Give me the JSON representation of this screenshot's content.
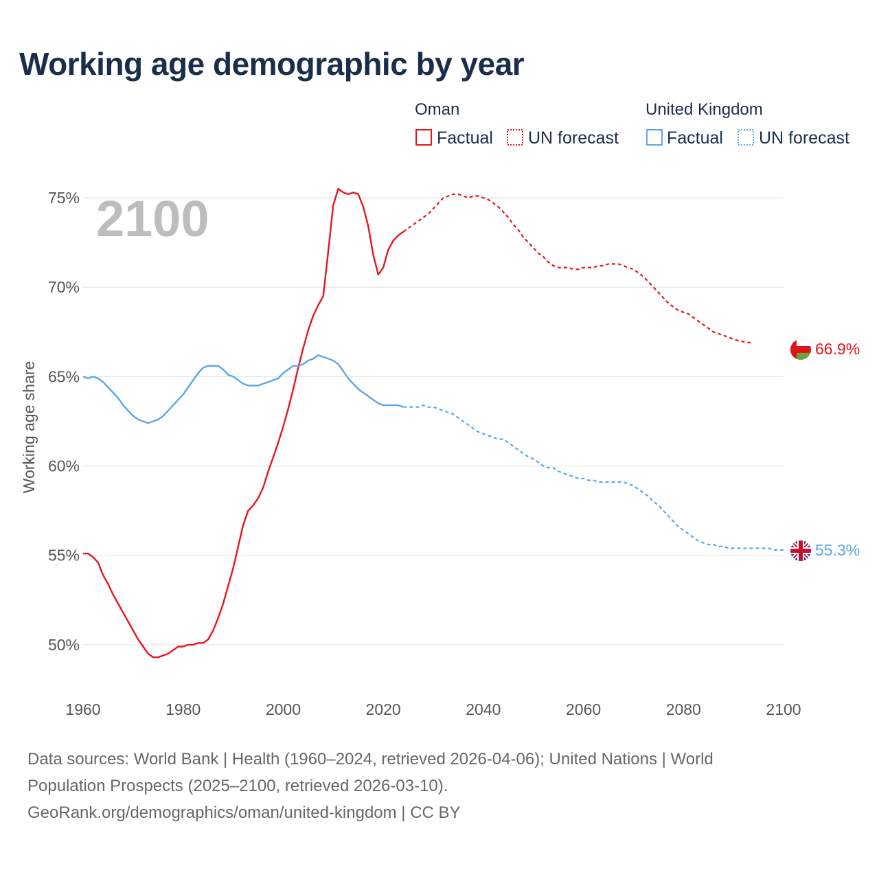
{
  "title": "Working age demographic by year",
  "colors": {
    "oman": "#e8141b",
    "uk": "#5aa6e6",
    "grid": "#e2e2e2",
    "text": "#1a2e4c"
  },
  "legend": {
    "groups": [
      {
        "name": "Oman",
        "color": "#e8141b",
        "factual_label": "Factual",
        "forecast_label": "UN forecast"
      },
      {
        "name": "United Kingdom",
        "color": "#5aa6e6",
        "factual_label": "Factual",
        "forecast_label": "UN forecast"
      }
    ]
  },
  "current_year": "2100",
  "footer": {
    "line1": "Data sources: World Bank | Health (1960–2024, retrieved 2026-04-06); United Nations | World",
    "line2": "Population Prospects (2025–2100, retrieved 2026-03-10).",
    "line3": "GeoRank.org/demographics/oman/united-kingdom | CC BY"
  },
  "chart_data": {
    "type": "line",
    "title": "Working age demographic by year",
    "xlabel": "",
    "ylabel": "Working age share",
    "xlim": [
      1960,
      2100
    ],
    "ylim": [
      47.5,
      76.5
    ],
    "x_ticks": [
      1960,
      1980,
      2000,
      2020,
      2040,
      2060,
      2080,
      2100
    ],
    "y_ticks": [
      50,
      55,
      60,
      65,
      70,
      75
    ],
    "y_tick_labels": [
      "50%",
      "55%",
      "60%",
      "65%",
      "70%",
      "75%"
    ],
    "grid": true,
    "legend_position": "top-right",
    "factual_end_year": 2024,
    "series": [
      {
        "name": "Oman",
        "color": "#e8141b",
        "end_label": "66.9%",
        "points": [
          [
            1960,
            55.1
          ],
          [
            1961,
            55.1
          ],
          [
            1962,
            54.9
          ],
          [
            1963,
            54.6
          ],
          [
            1964,
            53.9
          ],
          [
            1965,
            53.4
          ],
          [
            1966,
            52.8
          ],
          [
            1967,
            52.3
          ],
          [
            1968,
            51.8
          ],
          [
            1969,
            51.3
          ],
          [
            1970,
            50.8
          ],
          [
            1971,
            50.3
          ],
          [
            1972,
            49.9
          ],
          [
            1973,
            49.5
          ],
          [
            1974,
            49.3
          ],
          [
            1975,
            49.3
          ],
          [
            1976,
            49.4
          ],
          [
            1977,
            49.5
          ],
          [
            1978,
            49.7
          ],
          [
            1979,
            49.9
          ],
          [
            1980,
            49.9
          ],
          [
            1981,
            50.0
          ],
          [
            1982,
            50.0
          ],
          [
            1983,
            50.1
          ],
          [
            1984,
            50.1
          ],
          [
            1985,
            50.3
          ],
          [
            1986,
            50.8
          ],
          [
            1987,
            51.5
          ],
          [
            1988,
            52.3
          ],
          [
            1989,
            53.3
          ],
          [
            1990,
            54.3
          ],
          [
            1991,
            55.5
          ],
          [
            1992,
            56.7
          ],
          [
            1993,
            57.5
          ],
          [
            1994,
            57.8
          ],
          [
            1995,
            58.2
          ],
          [
            1996,
            58.8
          ],
          [
            1997,
            59.7
          ],
          [
            1998,
            60.5
          ],
          [
            1999,
            61.3
          ],
          [
            2000,
            62.2
          ],
          [
            2001,
            63.2
          ],
          [
            2002,
            64.3
          ],
          [
            2003,
            65.5
          ],
          [
            2004,
            66.6
          ],
          [
            2005,
            67.6
          ],
          [
            2006,
            68.4
          ],
          [
            2007,
            69.0
          ],
          [
            2008,
            69.5
          ],
          [
            2009,
            72.0
          ],
          [
            2010,
            74.6
          ],
          [
            2011,
            75.5
          ],
          [
            2012,
            75.3
          ],
          [
            2013,
            75.2
          ],
          [
            2014,
            75.3
          ],
          [
            2015,
            75.2
          ],
          [
            2016,
            74.5
          ],
          [
            2017,
            73.4
          ],
          [
            2018,
            71.8
          ],
          [
            2019,
            70.7
          ],
          [
            2020,
            71.1
          ],
          [
            2021,
            72.1
          ],
          [
            2022,
            72.6
          ],
          [
            2023,
            72.9
          ],
          [
            2024,
            73.1
          ],
          [
            2025,
            73.3
          ],
          [
            2026,
            73.5
          ],
          [
            2027,
            73.7
          ],
          [
            2028,
            73.9
          ],
          [
            2029,
            74.1
          ],
          [
            2030,
            74.4
          ],
          [
            2031,
            74.7
          ],
          [
            2032,
            75.0
          ],
          [
            2033,
            75.1
          ],
          [
            2034,
            75.2
          ],
          [
            2035,
            75.2
          ],
          [
            2036,
            75.1
          ],
          [
            2037,
            75.0
          ],
          [
            2038,
            75.1
          ],
          [
            2039,
            75.1
          ],
          [
            2040,
            75.0
          ],
          [
            2041,
            74.9
          ],
          [
            2042,
            74.7
          ],
          [
            2043,
            74.5
          ],
          [
            2044,
            74.2
          ],
          [
            2045,
            73.9
          ],
          [
            2046,
            73.5
          ],
          [
            2047,
            73.2
          ],
          [
            2048,
            72.8
          ],
          [
            2049,
            72.5
          ],
          [
            2050,
            72.2
          ],
          [
            2051,
            71.9
          ],
          [
            2052,
            71.7
          ],
          [
            2053,
            71.4
          ],
          [
            2054,
            71.2
          ],
          [
            2055,
            71.1
          ],
          [
            2056,
            71.1
          ],
          [
            2057,
            71.1
          ],
          [
            2058,
            71.0
          ],
          [
            2059,
            71.0
          ],
          [
            2060,
            71.1
          ],
          [
            2061,
            71.1
          ],
          [
            2062,
            71.1
          ],
          [
            2063,
            71.2
          ],
          [
            2064,
            71.2
          ],
          [
            2065,
            71.3
          ],
          [
            2066,
            71.3
          ],
          [
            2067,
            71.3
          ],
          [
            2068,
            71.2
          ],
          [
            2069,
            71.1
          ],
          [
            2070,
            71.0
          ],
          [
            2071,
            70.8
          ],
          [
            2072,
            70.6
          ],
          [
            2073,
            70.3
          ],
          [
            2074,
            70.0
          ],
          [
            2075,
            69.7
          ],
          [
            2076,
            69.4
          ],
          [
            2077,
            69.1
          ],
          [
            2078,
            68.9
          ],
          [
            2079,
            68.7
          ],
          [
            2080,
            68.6
          ],
          [
            2081,
            68.5
          ],
          [
            2082,
            68.3
          ],
          [
            2083,
            68.1
          ],
          [
            2084,
            67.9
          ],
          [
            2085,
            67.7
          ],
          [
            2086,
            67.5
          ],
          [
            2087,
            67.4
          ],
          [
            2088,
            67.3
          ],
          [
            2089,
            67.2
          ],
          [
            2090,
            67.1
          ],
          [
            2091,
            67.0
          ],
          [
            2092,
            66.95
          ],
          [
            2093,
            66.9
          ],
          [
            2094,
            66.9
          ]
        ]
      },
      {
        "name": "United Kingdom",
        "color": "#5aa6e6",
        "end_label": "55.3%",
        "points": [
          [
            1960,
            65.0
          ],
          [
            1961,
            64.9
          ],
          [
            1962,
            65.0
          ],
          [
            1963,
            64.9
          ],
          [
            1964,
            64.7
          ],
          [
            1965,
            64.4
          ],
          [
            1966,
            64.1
          ],
          [
            1967,
            63.8
          ],
          [
            1968,
            63.4
          ],
          [
            1969,
            63.1
          ],
          [
            1970,
            62.8
          ],
          [
            1971,
            62.6
          ],
          [
            1972,
            62.5
          ],
          [
            1973,
            62.4
          ],
          [
            1974,
            62.5
          ],
          [
            1975,
            62.6
          ],
          [
            1976,
            62.8
          ],
          [
            1977,
            63.1
          ],
          [
            1978,
            63.4
          ],
          [
            1979,
            63.7
          ],
          [
            1980,
            64.0
          ],
          [
            1981,
            64.4
          ],
          [
            1982,
            64.8
          ],
          [
            1983,
            65.2
          ],
          [
            1984,
            65.5
          ],
          [
            1985,
            65.6
          ],
          [
            1986,
            65.6
          ],
          [
            1987,
            65.6
          ],
          [
            1988,
            65.4
          ],
          [
            1989,
            65.1
          ],
          [
            1990,
            65.0
          ],
          [
            1991,
            64.8
          ],
          [
            1992,
            64.6
          ],
          [
            1993,
            64.5
          ],
          [
            1994,
            64.5
          ],
          [
            1995,
            64.5
          ],
          [
            1996,
            64.6
          ],
          [
            1997,
            64.7
          ],
          [
            1998,
            64.8
          ],
          [
            1999,
            64.9
          ],
          [
            2000,
            65.2
          ],
          [
            2001,
            65.4
          ],
          [
            2002,
            65.6
          ],
          [
            2003,
            65.6
          ],
          [
            2004,
            65.7
          ],
          [
            2005,
            65.9
          ],
          [
            2006,
            66.0
          ],
          [
            2007,
            66.2
          ],
          [
            2008,
            66.1
          ],
          [
            2009,
            66.0
          ],
          [
            2010,
            65.9
          ],
          [
            2011,
            65.7
          ],
          [
            2012,
            65.3
          ],
          [
            2013,
            64.9
          ],
          [
            2014,
            64.6
          ],
          [
            2015,
            64.3
          ],
          [
            2016,
            64.1
          ],
          [
            2017,
            63.9
          ],
          [
            2018,
            63.7
          ],
          [
            2019,
            63.5
          ],
          [
            2020,
            63.4
          ],
          [
            2021,
            63.4
          ],
          [
            2022,
            63.4
          ],
          [
            2023,
            63.4
          ],
          [
            2024,
            63.3
          ],
          [
            2025,
            63.3
          ],
          [
            2026,
            63.3
          ],
          [
            2027,
            63.3
          ],
          [
            2028,
            63.4
          ],
          [
            2029,
            63.3
          ],
          [
            2030,
            63.3
          ],
          [
            2031,
            63.2
          ],
          [
            2032,
            63.1
          ],
          [
            2033,
            63.0
          ],
          [
            2034,
            62.9
          ],
          [
            2035,
            62.7
          ],
          [
            2036,
            62.5
          ],
          [
            2037,
            62.3
          ],
          [
            2038,
            62.1
          ],
          [
            2039,
            61.9
          ],
          [
            2040,
            61.8
          ],
          [
            2041,
            61.7
          ],
          [
            2042,
            61.6
          ],
          [
            2043,
            61.5
          ],
          [
            2044,
            61.5
          ],
          [
            2045,
            61.3
          ],
          [
            2046,
            61.1
          ],
          [
            2047,
            60.9
          ],
          [
            2048,
            60.7
          ],
          [
            2049,
            60.5
          ],
          [
            2050,
            60.4
          ],
          [
            2051,
            60.2
          ],
          [
            2052,
            60.0
          ],
          [
            2053,
            59.9
          ],
          [
            2054,
            59.9
          ],
          [
            2055,
            59.7
          ],
          [
            2056,
            59.6
          ],
          [
            2057,
            59.5
          ],
          [
            2058,
            59.4
          ],
          [
            2059,
            59.3
          ],
          [
            2060,
            59.3
          ],
          [
            2061,
            59.2
          ],
          [
            2062,
            59.2
          ],
          [
            2063,
            59.1
          ],
          [
            2064,
            59.1
          ],
          [
            2065,
            59.1
          ],
          [
            2066,
            59.1
          ],
          [
            2067,
            59.1
          ],
          [
            2068,
            59.1
          ],
          [
            2069,
            59.0
          ],
          [
            2070,
            58.9
          ],
          [
            2071,
            58.7
          ],
          [
            2072,
            58.5
          ],
          [
            2073,
            58.3
          ],
          [
            2074,
            58.0
          ],
          [
            2075,
            57.8
          ],
          [
            2076,
            57.5
          ],
          [
            2077,
            57.2
          ],
          [
            2078,
            56.9
          ],
          [
            2079,
            56.6
          ],
          [
            2080,
            56.4
          ],
          [
            2081,
            56.2
          ],
          [
            2082,
            56.0
          ],
          [
            2083,
            55.8
          ],
          [
            2084,
            55.7
          ],
          [
            2085,
            55.6
          ],
          [
            2086,
            55.6
          ],
          [
            2087,
            55.5
          ],
          [
            2088,
            55.5
          ],
          [
            2089,
            55.4
          ],
          [
            2090,
            55.4
          ],
          [
            2091,
            55.4
          ],
          [
            2092,
            55.4
          ],
          [
            2093,
            55.4
          ],
          [
            2094,
            55.4
          ],
          [
            2095,
            55.4
          ],
          [
            2096,
            55.4
          ],
          [
            2097,
            55.4
          ],
          [
            2098,
            55.3
          ],
          [
            2099,
            55.3
          ],
          [
            2100,
            55.3
          ]
        ]
      }
    ]
  }
}
